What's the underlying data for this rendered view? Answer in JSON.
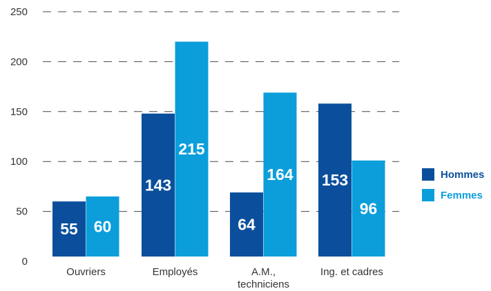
{
  "chart_data": {
    "type": "bar",
    "categories": [
      "Ouvriers",
      "Employés",
      "A.M., techniciens",
      "Ing. et cadres"
    ],
    "category_lines": [
      [
        "Ouvriers"
      ],
      [
        "Employés"
      ],
      [
        "A.M.,",
        "techniciens"
      ],
      [
        "Ing. et cadres"
      ]
    ],
    "series": [
      {
        "name": "Hommes",
        "values": [
          55,
          143,
          64,
          153
        ],
        "color": "#0b4f9c"
      },
      {
        "name": "Femmes",
        "values": [
          60,
          215,
          164,
          96
        ],
        "color": "#0b9edb"
      }
    ],
    "data_labels": [
      [
        "55",
        "143",
        "64",
        "153"
      ],
      [
        "60",
        "215",
        "164",
        "96"
      ]
    ],
    "yticks": [
      "0",
      "50",
      "100",
      "150",
      "200",
      "250"
    ],
    "ylim": [
      0,
      250
    ],
    "grid": true,
    "grid_style": "dashed",
    "legend_position": "right",
    "title": "",
    "xlabel": "",
    "ylabel": ""
  }
}
